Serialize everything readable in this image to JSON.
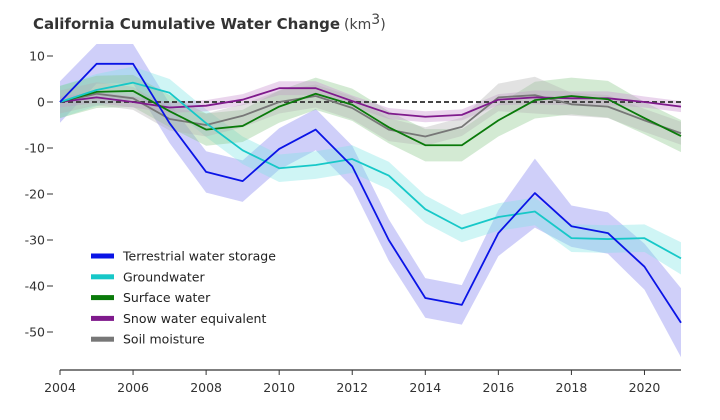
{
  "chart_data": {
    "type": "line",
    "title": "California Cumulative Water Change",
    "title_unit": "(km",
    "title_unit_sup": "3",
    "title_unit_close": ")",
    "xlabel": "",
    "ylabel": "",
    "xlim": [
      2004,
      2021
    ],
    "ylim": [
      -58,
      14
    ],
    "x_ticks": [
      2004,
      2006,
      2008,
      2010,
      2012,
      2014,
      2016,
      2018,
      2020
    ],
    "x_tick_labels": [
      "2004",
      "2006",
      "2008",
      "2010",
      "2012",
      "2014",
      "2016",
      "2018",
      "2020"
    ],
    "y_ticks": [
      10,
      0,
      -10,
      -20,
      -30,
      -40,
      -50
    ],
    "y_tick_labels": [
      "10",
      "0",
      "-10",
      "-20",
      "-30",
      "-40",
      "-50"
    ],
    "grid": false,
    "zero_line": {
      "value": 0,
      "style": "dashed",
      "color": "#444444"
    },
    "legend_position": "bottom-left",
    "x": [
      2004,
      2005,
      2006,
      2007,
      2008,
      2009,
      2010,
      2011,
      2012,
      2013,
      2014,
      2015,
      2016,
      2017,
      2018,
      2019,
      2020,
      2021
    ],
    "series": [
      {
        "name": "Terrestrial water storage",
        "color": "#0a14e6",
        "band_color": "#8080f0",
        "values": [
          0,
          8.3,
          8.3,
          -4.6,
          -15.2,
          -17.2,
          -10.2,
          -6,
          -14,
          -30,
          -42.6,
          -44.1,
          -28.5,
          -19.8,
          -27,
          -28.5,
          -35.8,
          -48
        ],
        "uncertainty": [
          4.5,
          4.3,
          4.3,
          4.3,
          4.5,
          4.5,
          4.5,
          4.5,
          4.5,
          4.5,
          4.3,
          4.3,
          5,
          7.5,
          4.5,
          4.5,
          5,
          7.5
        ]
      },
      {
        "name": "Groundwater",
        "color": "#17c8c8",
        "band_color": "#80e6e6",
        "values": [
          0,
          2.6,
          4.2,
          2,
          -4.6,
          -10.5,
          -14.4,
          -13.7,
          -12.4,
          -16,
          -23.3,
          -27.5,
          -25,
          -23.8,
          -29.6,
          -29.8,
          -29.6,
          -34
        ],
        "uncertainty": [
          3.5,
          3.5,
          3.5,
          3,
          3,
          3,
          3,
          3,
          3,
          3,
          3,
          3,
          3,
          3,
          3,
          3,
          3,
          3.5
        ]
      },
      {
        "name": "Surface water",
        "color": "#0a7a0a",
        "band_color": "#8cc88c",
        "values": [
          0,
          2.2,
          2.4,
          -2,
          -6,
          -5.2,
          -1,
          1.8,
          -0.6,
          -5.5,
          -9.4,
          -9.4,
          -4,
          0.4,
          1.3,
          0.6,
          -3.5,
          -7.4
        ],
        "uncertainty": [
          3.5,
          3.5,
          3.5,
          3.5,
          3.5,
          3.5,
          3.5,
          3.5,
          3.5,
          3.5,
          3.5,
          3.5,
          3.5,
          4,
          4,
          4,
          3.5,
          3.5
        ]
      },
      {
        "name": "Snow water equivalent",
        "color": "#7f1a8c",
        "band_color": "#c890d0",
        "values": [
          0,
          1,
          0,
          -1.2,
          -0.8,
          0.5,
          3,
          3,
          0.2,
          -2.5,
          -3.2,
          -2.8,
          0.5,
          1,
          0.8,
          0.8,
          0,
          -1
        ],
        "uncertainty": [
          1.2,
          1.2,
          1.2,
          1.2,
          1.2,
          1.2,
          1.5,
          1.5,
          1.2,
          1.2,
          1.2,
          1.2,
          1.2,
          1.5,
          1.5,
          1.5,
          1.2,
          1.2
        ]
      },
      {
        "name": "Soil moisture",
        "color": "#777777",
        "band_color": "#b4b4b4",
        "values": [
          0,
          1.8,
          0.8,
          -3.7,
          -5,
          -3,
          0,
          1.3,
          -1.3,
          -6,
          -7.5,
          -5.4,
          1,
          1.5,
          -0.5,
          -1,
          -4,
          -6.8
        ],
        "uncertainty": [
          2.5,
          2.5,
          2.5,
          2.5,
          2.5,
          2.5,
          2.5,
          2.5,
          2.5,
          2.5,
          2,
          2,
          3,
          4,
          2.5,
          2.5,
          2.5,
          2.5
        ]
      }
    ]
  }
}
